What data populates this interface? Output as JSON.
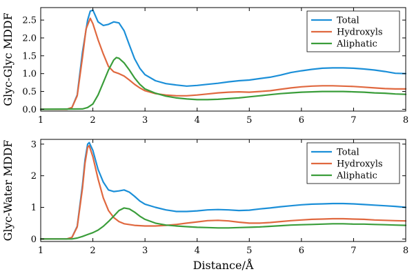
{
  "chart_data": [
    {
      "type": "line",
      "ylabel": "Glyc-Glyc MDDF",
      "xlabel": "",
      "xlim": [
        1,
        8
      ],
      "ylim": [
        -0.05,
        2.85
      ],
      "xticks": [
        1,
        2,
        3,
        4,
        5,
        6,
        7,
        8
      ],
      "yticks": [
        0.0,
        0.5,
        1.0,
        1.5,
        2.0,
        2.5
      ],
      "ytick_labels": [
        "0.0",
        "0.5",
        "1.0",
        "1.5",
        "2.0",
        "2.5"
      ],
      "legend": "top-right",
      "series": [
        {
          "name": "Total",
          "color": "#1b8fd8",
          "points": [
            [
              1.0,
              0.0
            ],
            [
              1.5,
              0.0
            ],
            [
              1.6,
              0.05
            ],
            [
              1.7,
              0.4
            ],
            [
              1.8,
              1.6
            ],
            [
              1.9,
              2.5
            ],
            [
              1.95,
              2.75
            ],
            [
              2.0,
              2.78
            ],
            [
              2.05,
              2.62
            ],
            [
              2.1,
              2.45
            ],
            [
              2.2,
              2.35
            ],
            [
              2.3,
              2.38
            ],
            [
              2.4,
              2.45
            ],
            [
              2.5,
              2.42
            ],
            [
              2.6,
              2.2
            ],
            [
              2.7,
              1.8
            ],
            [
              2.8,
              1.42
            ],
            [
              2.9,
              1.15
            ],
            [
              3.0,
              0.97
            ],
            [
              3.2,
              0.8
            ],
            [
              3.4,
              0.72
            ],
            [
              3.6,
              0.68
            ],
            [
              3.8,
              0.65
            ],
            [
              4.0,
              0.67
            ],
            [
              4.2,
              0.7
            ],
            [
              4.4,
              0.73
            ],
            [
              4.6,
              0.77
            ],
            [
              4.8,
              0.8
            ],
            [
              5.0,
              0.82
            ],
            [
              5.2,
              0.86
            ],
            [
              5.4,
              0.9
            ],
            [
              5.6,
              0.96
            ],
            [
              5.8,
              1.03
            ],
            [
              6.0,
              1.08
            ],
            [
              6.2,
              1.12
            ],
            [
              6.4,
              1.15
            ],
            [
              6.6,
              1.16
            ],
            [
              6.8,
              1.16
            ],
            [
              7.0,
              1.15
            ],
            [
              7.2,
              1.13
            ],
            [
              7.4,
              1.1
            ],
            [
              7.6,
              1.06
            ],
            [
              7.8,
              1.01
            ],
            [
              8.0,
              1.0
            ]
          ]
        },
        {
          "name": "Hydroxyls",
          "color": "#e0683f",
          "points": [
            [
              1.0,
              0.0
            ],
            [
              1.5,
              0.0
            ],
            [
              1.6,
              0.05
            ],
            [
              1.7,
              0.38
            ],
            [
              1.8,
              1.45
            ],
            [
              1.87,
              2.25
            ],
            [
              1.95,
              2.55
            ],
            [
              2.0,
              2.4
            ],
            [
              2.1,
              1.95
            ],
            [
              2.2,
              1.55
            ],
            [
              2.3,
              1.2
            ],
            [
              2.4,
              1.05
            ],
            [
              2.5,
              1.0
            ],
            [
              2.6,
              0.93
            ],
            [
              2.7,
              0.82
            ],
            [
              2.8,
              0.7
            ],
            [
              2.9,
              0.6
            ],
            [
              3.0,
              0.52
            ],
            [
              3.2,
              0.44
            ],
            [
              3.4,
              0.4
            ],
            [
              3.6,
              0.38
            ],
            [
              3.8,
              0.38
            ],
            [
              4.0,
              0.4
            ],
            [
              4.2,
              0.43
            ],
            [
              4.4,
              0.46
            ],
            [
              4.6,
              0.48
            ],
            [
              4.8,
              0.49
            ],
            [
              5.0,
              0.48
            ],
            [
              5.2,
              0.5
            ],
            [
              5.4,
              0.52
            ],
            [
              5.6,
              0.56
            ],
            [
              5.8,
              0.6
            ],
            [
              6.0,
              0.63
            ],
            [
              6.2,
              0.65
            ],
            [
              6.4,
              0.66
            ],
            [
              6.6,
              0.66
            ],
            [
              6.8,
              0.65
            ],
            [
              7.0,
              0.64
            ],
            [
              7.2,
              0.62
            ],
            [
              7.4,
              0.6
            ],
            [
              7.6,
              0.58
            ],
            [
              7.8,
              0.57
            ],
            [
              8.0,
              0.57
            ]
          ]
        },
        {
          "name": "Aliphatic",
          "color": "#3a9d3a",
          "points": [
            [
              1.0,
              0.0
            ],
            [
              1.8,
              0.01
            ],
            [
              1.9,
              0.05
            ],
            [
              2.0,
              0.15
            ],
            [
              2.1,
              0.4
            ],
            [
              2.2,
              0.75
            ],
            [
              2.3,
              1.1
            ],
            [
              2.4,
              1.38
            ],
            [
              2.45,
              1.45
            ],
            [
              2.5,
              1.43
            ],
            [
              2.6,
              1.3
            ],
            [
              2.7,
              1.1
            ],
            [
              2.8,
              0.88
            ],
            [
              2.9,
              0.7
            ],
            [
              3.0,
              0.57
            ],
            [
              3.2,
              0.45
            ],
            [
              3.4,
              0.37
            ],
            [
              3.6,
              0.32
            ],
            [
              3.8,
              0.29
            ],
            [
              4.0,
              0.27
            ],
            [
              4.2,
              0.27
            ],
            [
              4.4,
              0.28
            ],
            [
              4.6,
              0.3
            ],
            [
              4.8,
              0.32
            ],
            [
              5.0,
              0.35
            ],
            [
              5.2,
              0.38
            ],
            [
              5.4,
              0.41
            ],
            [
              5.6,
              0.44
            ],
            [
              5.8,
              0.46
            ],
            [
              6.0,
              0.48
            ],
            [
              6.2,
              0.49
            ],
            [
              6.4,
              0.5
            ],
            [
              6.6,
              0.5
            ],
            [
              6.8,
              0.5
            ],
            [
              7.0,
              0.49
            ],
            [
              7.2,
              0.48
            ],
            [
              7.4,
              0.46
            ],
            [
              7.6,
              0.45
            ],
            [
              7.8,
              0.43
            ],
            [
              8.0,
              0.42
            ]
          ]
        }
      ]
    },
    {
      "type": "line",
      "ylabel": "Glyc-Water MDDF",
      "xlabel": "Distance/Å",
      "xlim": [
        1,
        8
      ],
      "ylim": [
        -0.08,
        3.15
      ],
      "xticks": [
        1,
        2,
        3,
        4,
        5,
        6,
        7,
        8
      ],
      "yticks": [
        0,
        1,
        2,
        3
      ],
      "ytick_labels": [
        "0",
        "1",
        "2",
        "3"
      ],
      "legend": "top-right",
      "series": [
        {
          "name": "Total",
          "color": "#1b8fd8",
          "points": [
            [
              1.0,
              0.0
            ],
            [
              1.5,
              0.0
            ],
            [
              1.6,
              0.05
            ],
            [
              1.7,
              0.4
            ],
            [
              1.8,
              1.7
            ],
            [
              1.85,
              2.5
            ],
            [
              1.9,
              3.0
            ],
            [
              1.93,
              3.05
            ],
            [
              2.0,
              2.8
            ],
            [
              2.1,
              2.2
            ],
            [
              2.2,
              1.8
            ],
            [
              2.3,
              1.55
            ],
            [
              2.4,
              1.5
            ],
            [
              2.5,
              1.52
            ],
            [
              2.6,
              1.55
            ],
            [
              2.7,
              1.48
            ],
            [
              2.8,
              1.35
            ],
            [
              2.9,
              1.2
            ],
            [
              3.0,
              1.1
            ],
            [
              3.2,
              1.0
            ],
            [
              3.4,
              0.92
            ],
            [
              3.6,
              0.87
            ],
            [
              3.8,
              0.87
            ],
            [
              4.0,
              0.89
            ],
            [
              4.2,
              0.92
            ],
            [
              4.4,
              0.93
            ],
            [
              4.6,
              0.92
            ],
            [
              4.8,
              0.9
            ],
            [
              5.0,
              0.91
            ],
            [
              5.2,
              0.95
            ],
            [
              5.4,
              0.98
            ],
            [
              5.6,
              1.02
            ],
            [
              5.8,
              1.05
            ],
            [
              6.0,
              1.08
            ],
            [
              6.2,
              1.1
            ],
            [
              6.4,
              1.11
            ],
            [
              6.6,
              1.12
            ],
            [
              6.8,
              1.12
            ],
            [
              7.0,
              1.11
            ],
            [
              7.2,
              1.09
            ],
            [
              7.4,
              1.07
            ],
            [
              7.6,
              1.05
            ],
            [
              7.8,
              1.03
            ],
            [
              8.0,
              1.0
            ]
          ]
        },
        {
          "name": "Hydroxyls",
          "color": "#e0683f",
          "points": [
            [
              1.0,
              0.0
            ],
            [
              1.5,
              0.0
            ],
            [
              1.6,
              0.05
            ],
            [
              1.7,
              0.38
            ],
            [
              1.8,
              1.6
            ],
            [
              1.85,
              2.4
            ],
            [
              1.9,
              2.9
            ],
            [
              1.93,
              2.95
            ],
            [
              2.0,
              2.6
            ],
            [
              2.1,
              1.9
            ],
            [
              2.2,
              1.3
            ],
            [
              2.3,
              0.9
            ],
            [
              2.4,
              0.68
            ],
            [
              2.5,
              0.55
            ],
            [
              2.6,
              0.48
            ],
            [
              2.8,
              0.43
            ],
            [
              3.0,
              0.41
            ],
            [
              3.2,
              0.41
            ],
            [
              3.4,
              0.43
            ],
            [
              3.6,
              0.46
            ],
            [
              3.8,
              0.5
            ],
            [
              4.0,
              0.54
            ],
            [
              4.2,
              0.58
            ],
            [
              4.4,
              0.59
            ],
            [
              4.6,
              0.57
            ],
            [
              4.8,
              0.53
            ],
            [
              5.0,
              0.5
            ],
            [
              5.2,
              0.5
            ],
            [
              5.4,
              0.52
            ],
            [
              5.6,
              0.55
            ],
            [
              5.8,
              0.58
            ],
            [
              6.0,
              0.6
            ],
            [
              6.2,
              0.62
            ],
            [
              6.4,
              0.63
            ],
            [
              6.6,
              0.64
            ],
            [
              6.8,
              0.64
            ],
            [
              7.0,
              0.63
            ],
            [
              7.2,
              0.62
            ],
            [
              7.4,
              0.6
            ],
            [
              7.6,
              0.59
            ],
            [
              7.8,
              0.58
            ],
            [
              8.0,
              0.57
            ]
          ]
        },
        {
          "name": "Aliphatic",
          "color": "#3a9d3a",
          "points": [
            [
              1.0,
              0.0
            ],
            [
              1.6,
              0.0
            ],
            [
              1.7,
              0.03
            ],
            [
              1.8,
              0.08
            ],
            [
              1.9,
              0.14
            ],
            [
              2.0,
              0.2
            ],
            [
              2.1,
              0.28
            ],
            [
              2.2,
              0.4
            ],
            [
              2.3,
              0.55
            ],
            [
              2.4,
              0.72
            ],
            [
              2.5,
              0.9
            ],
            [
              2.6,
              0.98
            ],
            [
              2.7,
              0.95
            ],
            [
              2.8,
              0.85
            ],
            [
              2.9,
              0.72
            ],
            [
              3.0,
              0.62
            ],
            [
              3.2,
              0.5
            ],
            [
              3.4,
              0.44
            ],
            [
              3.6,
              0.41
            ],
            [
              3.8,
              0.39
            ],
            [
              4.0,
              0.37
            ],
            [
              4.2,
              0.36
            ],
            [
              4.4,
              0.35
            ],
            [
              4.6,
              0.35
            ],
            [
              4.8,
              0.36
            ],
            [
              5.0,
              0.37
            ],
            [
              5.2,
              0.38
            ],
            [
              5.4,
              0.4
            ],
            [
              5.6,
              0.42
            ],
            [
              5.8,
              0.44
            ],
            [
              6.0,
              0.45
            ],
            [
              6.2,
              0.46
            ],
            [
              6.4,
              0.47
            ],
            [
              6.6,
              0.48
            ],
            [
              6.8,
              0.48
            ],
            [
              7.0,
              0.47
            ],
            [
              7.2,
              0.47
            ],
            [
              7.4,
              0.46
            ],
            [
              7.6,
              0.45
            ],
            [
              7.8,
              0.44
            ],
            [
              8.0,
              0.43
            ]
          ]
        }
      ]
    }
  ]
}
